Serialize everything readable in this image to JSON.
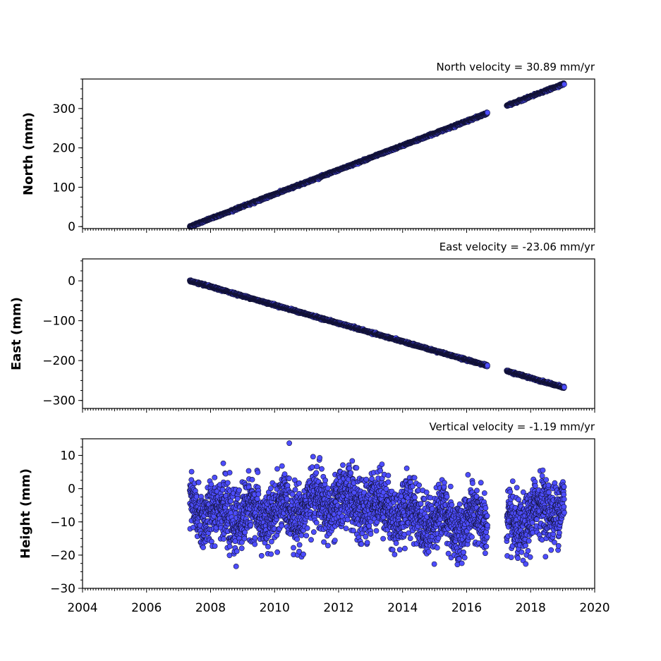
{
  "chart_data": [
    {
      "type": "scatter",
      "title": "North velocity = 30.89 mm/yr",
      "ylabel": "North (mm)",
      "xlabel": "",
      "xlim": [
        2004,
        2020
      ],
      "ylim": [
        -5,
        375
      ],
      "yticks": [
        0,
        100,
        200,
        300
      ],
      "xticks": [
        2004,
        2006,
        2008,
        2010,
        2012,
        2014,
        2016,
        2018,
        2020
      ],
      "show_x_tick_labels": false,
      "color": "#4d4dff",
      "series": [
        {
          "segments": [
            {
              "x_start": 2007.35,
              "x_end": 2016.65,
              "y_start": 0,
              "y_end": 288
            },
            {
              "x_start": 2017.25,
              "x_end": 2019.05,
              "y_start": 307,
              "y_end": 363
            }
          ],
          "noise": 2
        }
      ]
    },
    {
      "type": "scatter",
      "title": "East velocity = -23.06 mm/yr",
      "ylabel": "East (mm)",
      "xlabel": "",
      "xlim": [
        2004,
        2020
      ],
      "ylim": [
        -320,
        55
      ],
      "yticks": [
        0,
        -100,
        -200,
        -300
      ],
      "xticks": [
        2004,
        2006,
        2008,
        2010,
        2012,
        2014,
        2016,
        2018,
        2020
      ],
      "show_x_tick_labels": false,
      "color": "#4d4dff",
      "series": [
        {
          "segments": [
            {
              "x_start": 2007.35,
              "x_end": 2016.65,
              "y_start": 0,
              "y_end": -213
            },
            {
              "x_start": 2017.25,
              "x_end": 2019.05,
              "y_start": -226,
              "y_end": -268
            }
          ],
          "noise": 2
        }
      ]
    },
    {
      "type": "scatter",
      "title": "Vertical velocity = -1.19 mm/yr",
      "ylabel": "Height (mm)",
      "xlabel": "",
      "xlim": [
        2004,
        2020
      ],
      "ylim": [
        -30,
        15
      ],
      "yticks": [
        10,
        0,
        -10,
        -20,
        -30
      ],
      "xticks": [
        2004,
        2006,
        2008,
        2010,
        2012,
        2014,
        2016,
        2018,
        2020
      ],
      "show_x_tick_labels": true,
      "color": "#4d4dff",
      "series": [
        {
          "segments": [
            {
              "x_start": 2007.35,
              "x_end": 2016.65,
              "y_start": -5,
              "y_end": -8
            },
            {
              "x_start": 2017.25,
              "x_end": 2019.05,
              "y_start": -12,
              "y_end": -6
            }
          ],
          "noise": 10
        }
      ]
    }
  ]
}
